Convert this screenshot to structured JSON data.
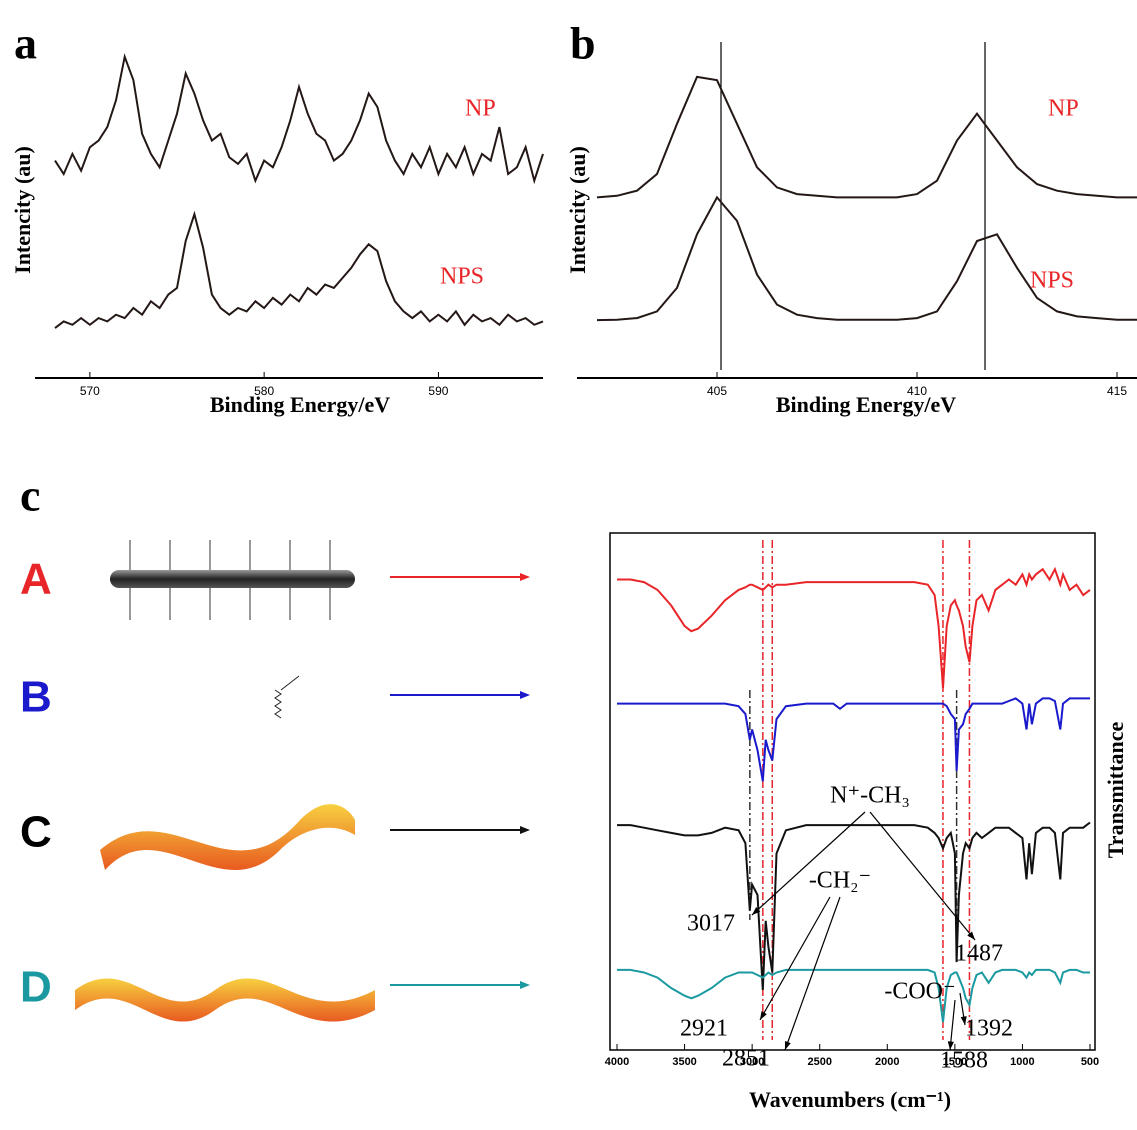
{
  "chart_data": [
    {
      "type": "line",
      "panel": "a",
      "xlabel": "Binding Energy/eV",
      "ylabel": "Intencity (au)",
      "xlim": [
        568,
        596
      ],
      "xticks": [
        570,
        580,
        590
      ],
      "ylim": [
        0,
        100
      ],
      "x": [
        568,
        568.5,
        569,
        569.5,
        570,
        570.5,
        571,
        571.5,
        572,
        572.5,
        573,
        573.5,
        574,
        574.5,
        575,
        575.5,
        576,
        576.5,
        577,
        577.5,
        578,
        578.5,
        579,
        579.5,
        580,
        580.5,
        581,
        581.5,
        582,
        582.5,
        583,
        583.5,
        584,
        584.5,
        585,
        585.5,
        586,
        586.5,
        587,
        587.5,
        588,
        588.5,
        589,
        589.5,
        590,
        590.5,
        591,
        591.5,
        592,
        592.5,
        593,
        593.5,
        594,
        594.5,
        595,
        595.5,
        596
      ],
      "series": [
        {
          "name": "NP",
          "color": "#231815",
          "label_color": "#e8262a",
          "values": [
            64,
            60,
            66,
            61,
            68,
            70,
            74,
            82,
            95,
            88,
            72,
            66,
            62,
            70,
            78,
            90,
            84,
            76,
            70,
            72,
            65,
            63,
            66,
            58,
            64,
            62,
            68,
            76,
            86,
            78,
            72,
            70,
            64,
            66,
            70,
            76,
            84,
            80,
            70,
            64,
            60,
            66,
            62,
            68,
            60,
            66,
            62,
            68,
            60,
            66,
            64,
            74,
            60,
            62,
            68,
            58,
            66
          ]
        },
        {
          "name": "NPS",
          "color": "#231815",
          "label_color": "#e8262a",
          "values": [
            14,
            16,
            15,
            17,
            15,
            17,
            16,
            18,
            17,
            20,
            18,
            22,
            20,
            24,
            26,
            40,
            48,
            38,
            24,
            20,
            18,
            20,
            19,
            22,
            20,
            23,
            21,
            24,
            22,
            26,
            24,
            27,
            26,
            29,
            32,
            36,
            39,
            37,
            28,
            22,
            19,
            17,
            19,
            16,
            18,
            16,
            19,
            15,
            18,
            16,
            17,
            15,
            18,
            16,
            17,
            15,
            16
          ]
        }
      ]
    },
    {
      "type": "line",
      "panel": "b",
      "xlabel": "Binding Energy/eV",
      "ylabel": "Intencity (au)",
      "xlim": [
        402,
        415.5
      ],
      "xticks": [
        405,
        410,
        415
      ],
      "ylim": [
        0,
        100
      ],
      "vlines": [
        405.1,
        411.7
      ],
      "x": [
        402,
        402.5,
        403,
        403.5,
        404,
        404.5,
        405,
        405.5,
        406,
        406.5,
        407,
        407.5,
        408,
        408.5,
        409,
        409.5,
        410,
        410.5,
        411,
        411.5,
        412,
        412.5,
        413,
        413.5,
        414,
        414.5,
        415,
        415.5
      ],
      "series": [
        {
          "name": "NP",
          "color": "#231815",
          "label_color": "#e8262a",
          "values": [
            53,
            53.5,
            55,
            60,
            75,
            89,
            88,
            75,
            62,
            56,
            54,
            53.5,
            53,
            53,
            53,
            53,
            54,
            58,
            70,
            78,
            70,
            62,
            57,
            55,
            54,
            53.5,
            53,
            53
          ]
        },
        {
          "name": "NPS",
          "color": "#231815",
          "label_color": "#e8262a",
          "values": [
            16.4,
            16.5,
            17,
            19,
            26,
            42,
            53,
            46,
            30,
            21,
            18,
            17,
            16.5,
            16.5,
            16.5,
            16.5,
            17,
            19,
            28,
            40,
            42,
            32,
            23,
            19,
            17.5,
            17,
            16.5,
            16.5
          ]
        }
      ]
    },
    {
      "type": "line",
      "panel": "c",
      "xlabel": "Wavenumbers (cm⁻¹)",
      "ylabel": "Transmittance",
      "xlim": [
        4000,
        500
      ],
      "xticks": [
        4000,
        3500,
        3000,
        2500,
        2000,
        1500,
        1000,
        500
      ],
      "ylim": [
        0,
        100
      ],
      "schematic_labels": [
        "A",
        "B",
        "C",
        "D"
      ],
      "peaks": [
        3017,
        2921,
        2851,
        1487,
        1588,
        1392
      ],
      "peak_line_colors": [
        "#333333",
        "#e8262a",
        "#e8262a",
        "#333333",
        "#e8262a",
        "#e8262a"
      ],
      "groups": [
        "N⁺-CH₃",
        "-CH₂⁻",
        "-COO⁻"
      ],
      "x": [
        4000,
        3900,
        3800,
        3700,
        3600,
        3500,
        3450,
        3400,
        3300,
        3200,
        3100,
        3050,
        3017,
        3000,
        2960,
        2921,
        2900,
        2880,
        2851,
        2820,
        2750,
        2600,
        2400,
        2350,
        2300,
        2200,
        2100,
        2000,
        1900,
        1800,
        1700,
        1650,
        1620,
        1588,
        1560,
        1530,
        1500,
        1487,
        1470,
        1440,
        1420,
        1392,
        1370,
        1340,
        1300,
        1250,
        1200,
        1150,
        1100,
        1050,
        1000,
        970,
        950,
        930,
        900,
        850,
        800,
        760,
        720,
        700,
        650,
        600,
        550,
        500
      ],
      "series": [
        {
          "color": "#e8262a",
          "values": [
            91,
            91,
            90.5,
            89,
            86,
            82,
            81,
            81.5,
            84,
            87,
            89,
            89.5,
            90,
            90,
            89.5,
            89,
            89.5,
            90,
            89.5,
            90,
            90,
            90.5,
            90.5,
            90.5,
            90.5,
            90.5,
            90.5,
            90.5,
            90.5,
            90.5,
            90,
            88,
            82,
            70,
            82,
            86,
            87,
            86,
            85,
            82,
            78,
            75,
            82,
            87,
            88,
            85,
            89,
            90,
            91,
            90,
            92,
            90,
            92,
            91,
            92,
            93,
            91,
            93,
            90,
            92,
            89,
            90,
            88,
            89
          ]
        },
        {
          "color": "#1a1acc",
          "values": [
            67,
            67,
            67,
            67,
            67,
            67,
            67,
            67,
            67,
            67,
            66.5,
            65,
            60,
            62,
            58,
            52,
            60,
            58,
            56,
            64,
            66.5,
            67,
            67,
            66,
            67,
            67,
            67,
            67,
            67,
            67,
            67,
            67,
            67,
            67,
            66.5,
            65,
            64,
            54,
            62,
            63,
            65,
            66,
            67,
            67,
            67,
            67,
            67,
            67,
            67.5,
            68,
            67,
            62,
            67,
            63,
            67,
            68,
            68,
            67.5,
            62,
            67,
            68,
            68,
            68,
            68
          ]
        },
        {
          "color": "#111111",
          "values": [
            43.5,
            43.5,
            43,
            42.5,
            42,
            41.5,
            41.5,
            41.5,
            42,
            43,
            42.5,
            40,
            27,
            32,
            30,
            11.6,
            25,
            20,
            15,
            38,
            42.5,
            43.5,
            43.5,
            43.5,
            43.5,
            43.5,
            43.5,
            43.5,
            43.5,
            43.5,
            43,
            42,
            41,
            39,
            41,
            42,
            38,
            17,
            30,
            38,
            40,
            39,
            41,
            42,
            41,
            42,
            43,
            43,
            43,
            42,
            41,
            33,
            40,
            34,
            42,
            43,
            43,
            42,
            33,
            42,
            43,
            43,
            43,
            44
          ]
        },
        {
          "color": "#1a9aa0",
          "values": [
            15.5,
            15.5,
            15,
            14,
            12,
            10.5,
            10,
            10.5,
            12,
            14,
            15,
            15,
            15,
            15,
            14.5,
            14,
            14.5,
            15,
            14.5,
            15,
            15.5,
            15.5,
            15.5,
            15.5,
            15.5,
            15.5,
            15.5,
            15.5,
            15.5,
            15.5,
            15.5,
            15,
            12,
            5.4,
            12,
            14.5,
            15,
            15,
            14,
            12,
            10,
            8.7,
            12,
            14.5,
            15,
            13,
            15,
            15.5,
            15.5,
            15.5,
            15,
            14,
            15,
            14.5,
            15.5,
            15.5,
            15.5,
            15,
            13,
            15,
            15.5,
            15.5,
            15,
            15
          ]
        }
      ]
    }
  ]
}
